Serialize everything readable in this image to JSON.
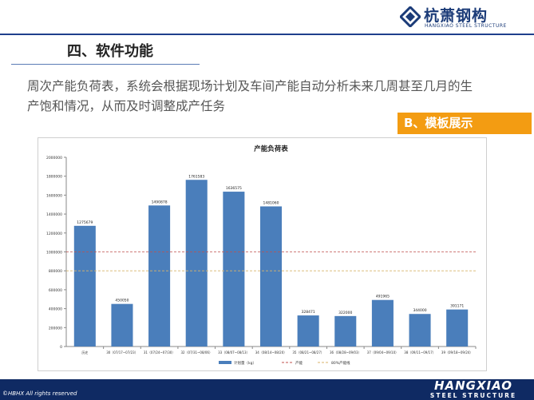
{
  "header": {
    "logo_cn": "杭萧钢构",
    "logo_en": "HANGXIAO STEEL STRUCTURE"
  },
  "section": {
    "title": "四、软件功能"
  },
  "intro": {
    "text": "周次产能负荷表，系统会根据现场计划及车间产能自动分析未来几周甚至几月的生产饱和情况，从而及时调整成产任务"
  },
  "tag": {
    "label": "B、模板展示"
  },
  "colors": {
    "accent": "#f39c12",
    "brand": "#1f3f8c",
    "bar": "#4a7ebb",
    "capacity": "#c0504d",
    "capacity80": "#d8b36a"
  },
  "chart_data": {
    "type": "bar",
    "title": "产能负荷表",
    "categories": [
      "历史",
      "30（07/17~07/23）",
      "31（07/24~07/30）",
      "32（07/31~08/06）",
      "33（08/07~08/13）",
      "34（08/14~08/20）",
      "35（08/21~08/27）",
      "36（08/28~09/03）",
      "37（09/04~09/10）",
      "38（09/11~09/17）",
      "39（09/18~09/24）"
    ],
    "series": [
      {
        "name": "计划量（kg）",
        "values": [
          1275679,
          450050,
          1490878,
          1761583,
          1636575,
          1481060,
          328471,
          322000,
          491965,
          344000,
          391171
        ]
      }
    ],
    "lines": [
      {
        "name": "产能",
        "value": 1000000
      },
      {
        "name": "80%产能线",
        "value": 800000
      }
    ],
    "ylim": [
      0,
      2000000
    ],
    "yticks": [
      0,
      200000,
      400000,
      600000,
      800000,
      1000000,
      1200000,
      1400000,
      1600000,
      1800000,
      2000000
    ],
    "legend": "bottom",
    "grid": false
  },
  "footer": {
    "copyright": "©HBHX All rights reserved",
    "brand_line1": "HANGXIAO",
    "brand_line2": "STEEL STRUCTURE"
  }
}
